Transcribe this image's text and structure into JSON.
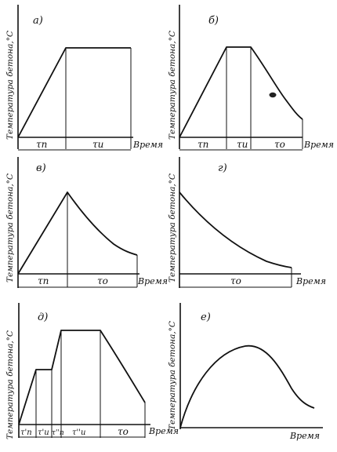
{
  "panels": [
    {
      "id": "a",
      "label": "а)",
      "ylabel": "Температура бетона,°С",
      "xlabel": "Время",
      "segments": [
        "τп",
        "τи"
      ],
      "profile": "heat-hold"
    },
    {
      "id": "b",
      "label": "б)",
      "ylabel": "Температура бетона,°С",
      "xlabel": "Время",
      "segments": [
        "τп",
        "τи",
        "τо"
      ],
      "profile": "heat-hold-cool"
    },
    {
      "id": "v",
      "label": "в)",
      "ylabel": "Температура бетона,°С",
      "xlabel": "Время",
      "segments": [
        "τп",
        "τо"
      ],
      "profile": "heat-cool"
    },
    {
      "id": "g",
      "label": "г)",
      "ylabel": "Температура бетона,°С",
      "xlabel": "Время",
      "segments": [
        "τо"
      ],
      "profile": "cool-only"
    },
    {
      "id": "d",
      "label": "д)",
      "ylabel": "Температура бетона,°С",
      "xlabel": "Время",
      "segments": [
        "τ'п",
        "τ'и",
        "τ''п",
        "τ''и",
        "τо"
      ],
      "profile": "stepped-heat-hold-cool"
    },
    {
      "id": "e",
      "label": "е)",
      "ylabel": "Температура бетона,°С",
      "xlabel": "Время",
      "segments": [],
      "profile": "rise-and-fall"
    }
  ]
}
